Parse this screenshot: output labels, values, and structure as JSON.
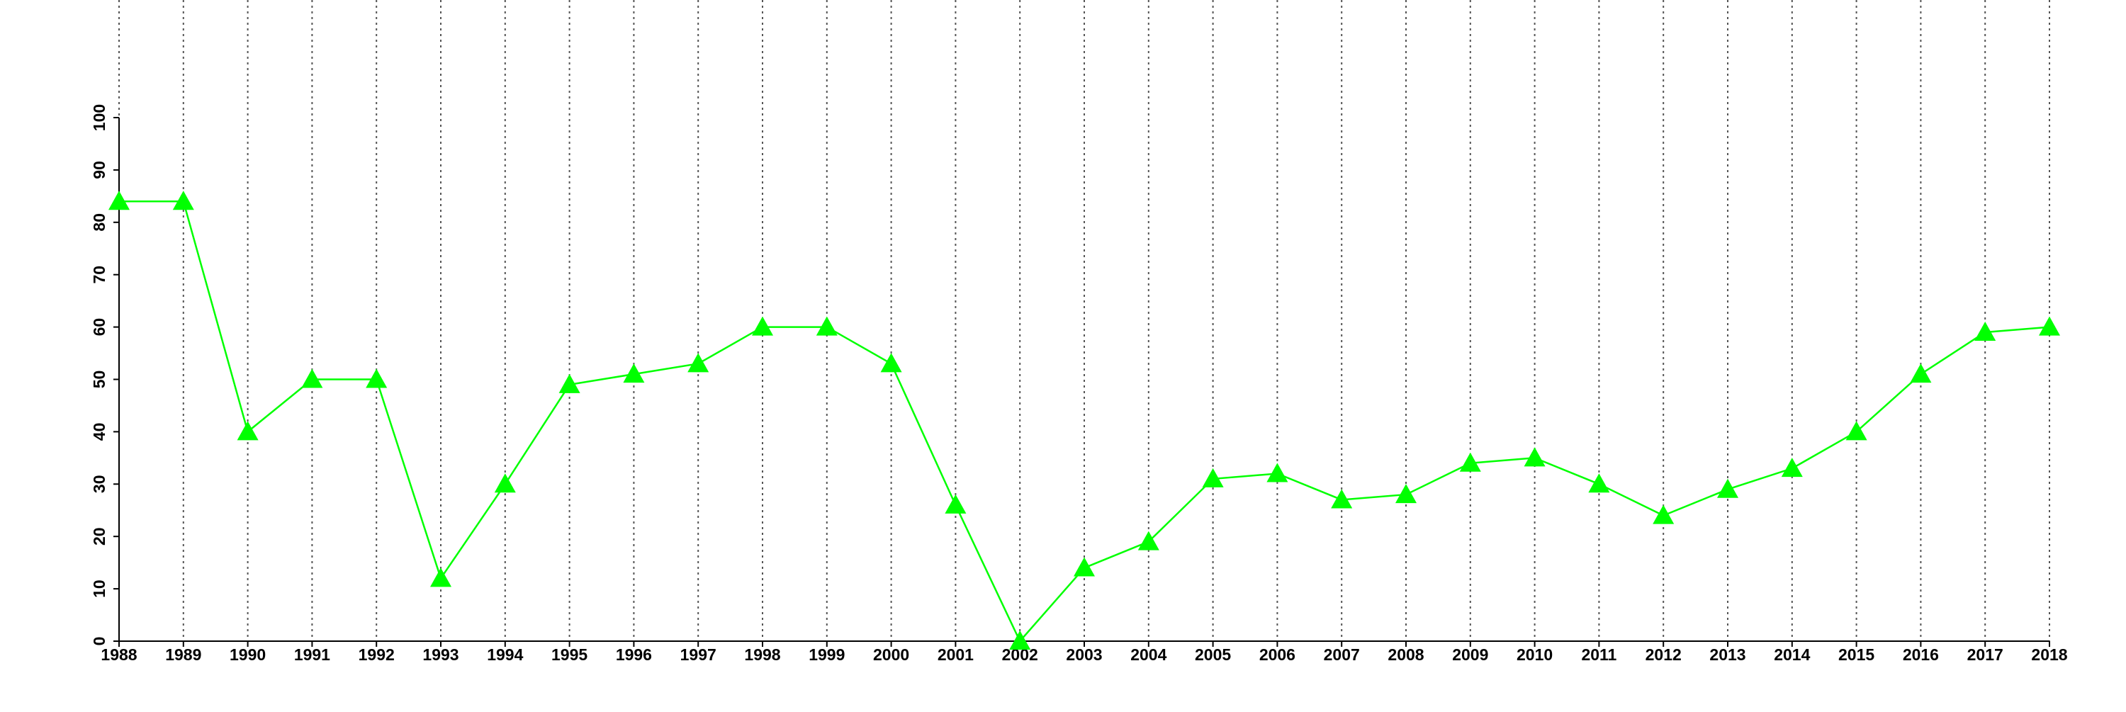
{
  "chart_data": {
    "type": "line",
    "x": [
      1988,
      1989,
      1990,
      1991,
      1992,
      1993,
      1994,
      1995,
      1996,
      1997,
      1998,
      1999,
      2000,
      2001,
      2002,
      2003,
      2004,
      2005,
      2006,
      2007,
      2008,
      2009,
      2010,
      2011,
      2012,
      2013,
      2014,
      2015,
      2016,
      2017,
      2018
    ],
    "series": [
      {
        "color": "#00ff00",
        "marker": "triangle",
        "values": [
          84,
          84,
          40,
          50,
          50,
          12,
          30,
          49,
          51,
          53,
          60,
          60,
          53,
          26,
          0,
          14,
          19,
          31,
          32,
          27,
          28,
          34,
          35,
          30,
          24,
          29,
          33,
          40,
          51,
          59,
          60
        ]
      }
    ],
    "xlim": [
      1988,
      2018
    ],
    "xticks": [
      1988,
      1989,
      1990,
      1991,
      1992,
      1993,
      1994,
      1995,
      1996,
      1997,
      1998,
      1999,
      2000,
      2001,
      2002,
      2003,
      2004,
      2005,
      2006,
      2007,
      2008,
      2009,
      2010,
      2011,
      2012,
      2013,
      2014,
      2015,
      2016,
      2017,
      2018
    ],
    "ylim": [
      0,
      100
    ],
    "yticks": [
      0,
      10,
      20,
      30,
      40,
      50,
      60,
      70,
      80,
      90,
      100
    ],
    "grid": "x"
  }
}
